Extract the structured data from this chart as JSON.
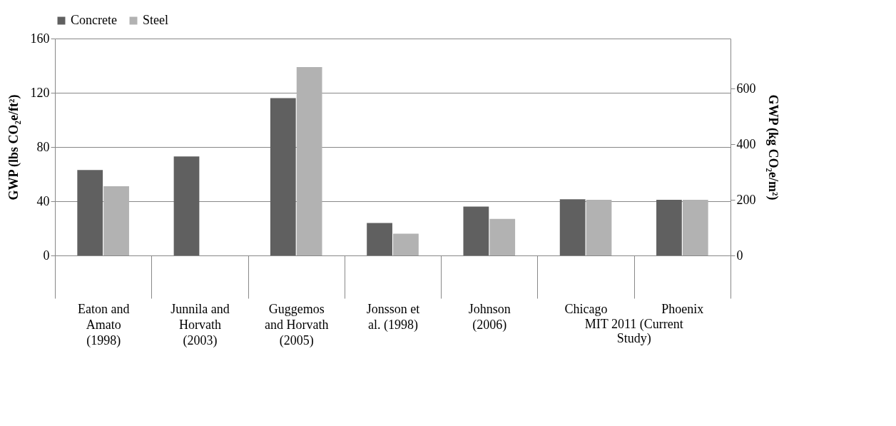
{
  "chart_data": {
    "type": "bar",
    "ylabel": "GWP (lbs CO₂e/ft²)",
    "y2label": "GWP (kg CO₂e/m²)",
    "categories": [
      "Eaton and Amato (1998)",
      "Junnila and Horvath (2003)",
      "Guggemos and Horvath (2005)",
      "Jonsson et al. (1998)",
      "Johnson (2006)",
      "Chicago",
      "Phoenix"
    ],
    "series": [
      {
        "name": "Concrete",
        "color": "#606060",
        "values": [
          63,
          73,
          116,
          24,
          36,
          41.5,
          41
        ]
      },
      {
        "name": "Steel",
        "color": "#b2b2b2",
        "values": [
          51,
          null,
          139,
          16,
          27,
          41,
          41
        ]
      }
    ],
    "ylim": [
      0,
      160
    ],
    "yticks": [
      0,
      40,
      80,
      120,
      160
    ],
    "y2lim": [
      0,
      780
    ],
    "y2ticks": [
      0,
      200,
      400,
      600
    ],
    "annotations": [
      "MIT 2011 (Current Study)"
    ],
    "grid": "y",
    "legend": "top"
  }
}
